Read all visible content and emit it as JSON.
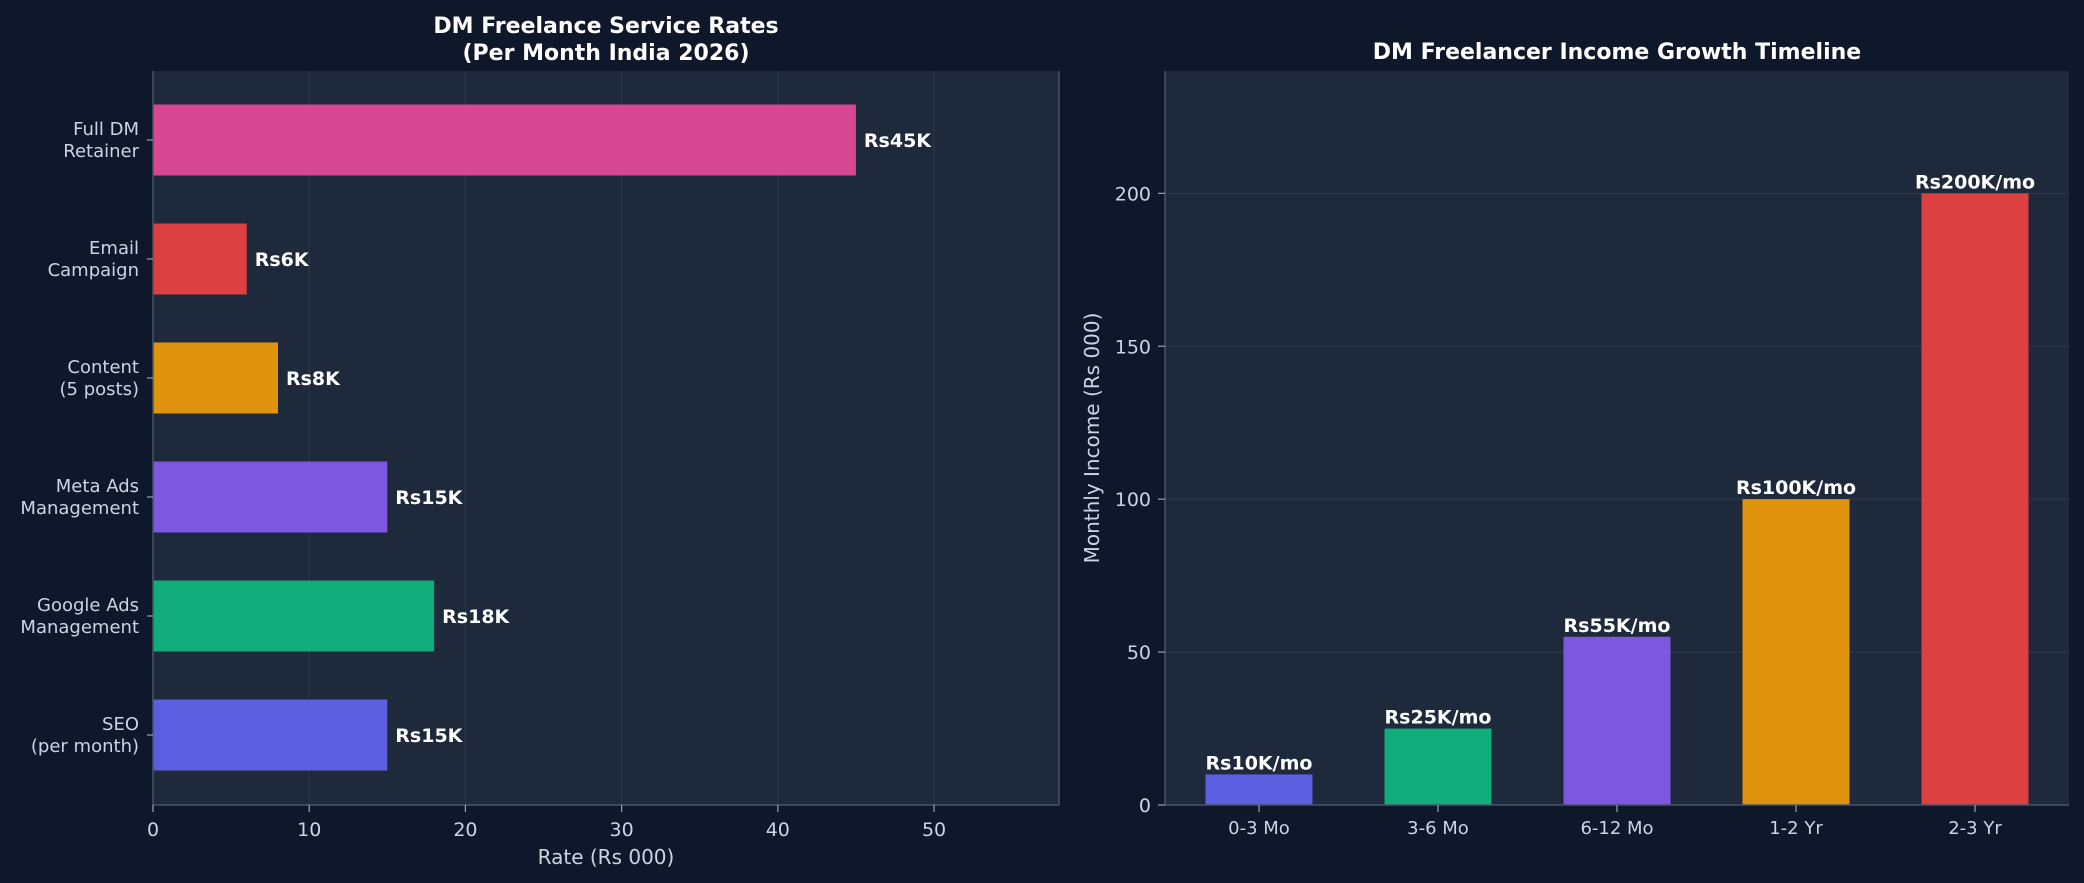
{
  "chart_data": [
    {
      "type": "bar",
      "orientation": "horizontal",
      "title": "DM Freelance Service Rates\n(Per Month India 2026)",
      "xlabel": "Rate (Rs 000)",
      "ylabel": "",
      "xlim": [
        0,
        58
      ],
      "xticks": [
        0,
        10,
        20,
        30,
        40,
        50
      ],
      "grid": true,
      "categories": [
        "SEO\n(per month)",
        "Google Ads\nManagement",
        "Meta Ads\nManagement",
        "Content\n(5 posts)",
        "Email\nCampaign",
        "Full DM\nRetainer"
      ],
      "values": [
        15,
        18,
        15,
        8,
        6,
        45
      ],
      "data_labels": [
        "Rs15K",
        "Rs18K",
        "Rs15K",
        "Rs8K",
        "Rs6K",
        "Rs45K"
      ],
      "colors": [
        "#5b5fe0",
        "#10ac7a",
        "#7e57e0",
        "#e0930f",
        "#dc4040",
        "#d84794"
      ]
    },
    {
      "type": "bar",
      "orientation": "vertical",
      "title": "DM Freelancer Income Growth Timeline",
      "xlabel": "",
      "ylabel": "Monthly Income (Rs 000)",
      "ylim": [
        0,
        240
      ],
      "yticks": [
        0,
        50,
        100,
        150,
        200
      ],
      "grid": true,
      "categories": [
        "0-3 Mo",
        "3-6 Mo",
        "6-12 Mo",
        "1-2 Yr",
        "2-3 Yr"
      ],
      "values": [
        10,
        25,
        55,
        100,
        200
      ],
      "data_labels": [
        "Rs10K/mo",
        "Rs25K/mo",
        "Rs55K/mo",
        "Rs100K/mo",
        "Rs200K/mo"
      ],
      "colors": [
        "#5b5fe0",
        "#10ac7a",
        "#7e57e0",
        "#e0930f",
        "#dc4040"
      ]
    }
  ],
  "style": {
    "figure_bg": "#0f172a",
    "axes_bg": "#1e293b",
    "grid_color": "#334155",
    "spine_color": "#475569",
    "text_color": "#ffffff",
    "tick_color": "#cbd5e1"
  }
}
